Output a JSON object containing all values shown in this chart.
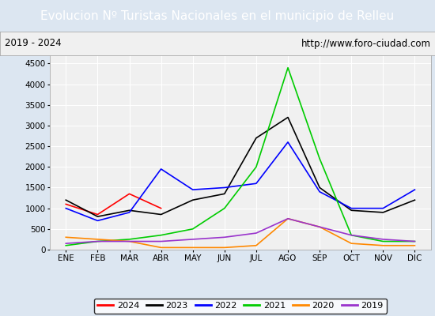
{
  "title": "Evolucion Nº Turistas Nacionales en el municipio de Relleu",
  "subtitle_left": "2019 - 2024",
  "subtitle_right": "http://www.foro-ciudad.com",
  "months": [
    "ENE",
    "FEB",
    "MAR",
    "ABR",
    "MAY",
    "JUN",
    "JUL",
    "AGO",
    "SEP",
    "OCT",
    "NOV",
    "DIC"
  ],
  "series": {
    "2024": {
      "color": "#ff0000",
      "values": [
        1100,
        850,
        1350,
        1000,
        null,
        null,
        null,
        null,
        null,
        null,
        null,
        null
      ]
    },
    "2023": {
      "color": "#000000",
      "values": [
        1200,
        800,
        950,
        850,
        1200,
        1350,
        2700,
        3200,
        1500,
        950,
        900,
        1200
      ]
    },
    "2022": {
      "color": "#0000ff",
      "values": [
        1000,
        700,
        900,
        1950,
        1450,
        1500,
        1600,
        2600,
        1400,
        1000,
        1000,
        1450
      ]
    },
    "2021": {
      "color": "#00cc00",
      "values": [
        100,
        200,
        250,
        350,
        500,
        1000,
        2000,
        4400,
        2200,
        350,
        200,
        200
      ]
    },
    "2020": {
      "color": "#ff8800",
      "values": [
        300,
        250,
        200,
        50,
        50,
        50,
        100,
        750,
        550,
        150,
        100,
        100
      ]
    },
    "2019": {
      "color": "#9933cc",
      "values": [
        150,
        200,
        200,
        200,
        250,
        300,
        400,
        750,
        550,
        350,
        250,
        200
      ]
    }
  },
  "ylim": [
    0,
    4700
  ],
  "yticks": [
    0,
    500,
    1000,
    1500,
    2000,
    2500,
    3000,
    3500,
    4000,
    4500
  ],
  "title_bg_color": "#5b9bd5",
  "title_text_color": "#ffffff",
  "plot_bg_color": "#f0f0f0",
  "outer_bg_color": "#dce6f1",
  "grid_color": "#ffffff",
  "border_color": "#5b9bd5",
  "legend_order": [
    "2024",
    "2023",
    "2022",
    "2021",
    "2020",
    "2019"
  ],
  "title_fontsize": 11,
  "tick_fontsize": 7.5,
  "legend_fontsize": 8
}
